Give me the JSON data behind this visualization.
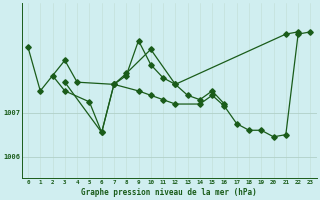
{
  "title": "Graphe pression niveau de la mer (hPa)",
  "bg_color": "#d0eef0",
  "plot_bg_color": "#d0eef0",
  "grid_color_major": "#b0d0c8",
  "grid_color_minor": "#c0ddd5",
  "line_color": "#1a5c1a",
  "x_ticks": [
    0,
    1,
    2,
    3,
    4,
    5,
    6,
    7,
    8,
    9,
    10,
    11,
    12,
    13,
    14,
    15,
    16,
    17,
    18,
    19,
    20,
    21,
    22,
    23
  ],
  "ylim": [
    1005.5,
    1009.5
  ],
  "yticks": [
    1006,
    1007
  ],
  "line1": {
    "x": [
      0,
      1,
      3,
      4,
      7,
      8,
      10,
      12,
      21,
      22
    ],
    "y": [
      1008.5,
      1007.5,
      1008.2,
      1007.7,
      1007.65,
      1007.9,
      1008.45,
      1007.65,
      1008.8,
      1008.85
    ]
  },
  "line2": {
    "x": [
      2,
      3,
      5,
      6,
      7,
      8,
      9,
      10,
      11,
      12,
      13,
      14,
      15,
      16
    ],
    "y": [
      1007.85,
      1007.5,
      1007.25,
      1006.55,
      1007.65,
      1007.85,
      1008.65,
      1008.1,
      1007.8,
      1007.65,
      1007.4,
      1007.3,
      1007.5,
      1007.2
    ]
  },
  "line3": {
    "x": [
      3,
      6,
      7,
      9,
      10,
      11,
      12,
      14,
      15,
      16,
      17,
      18,
      19,
      20,
      21,
      22,
      23
    ],
    "y": [
      1007.7,
      1006.55,
      1007.65,
      1007.5,
      1007.4,
      1007.3,
      1007.2,
      1007.2,
      1007.4,
      1007.15,
      1006.75,
      1006.6,
      1006.6,
      1006.45,
      1006.5,
      1008.8,
      1008.85
    ]
  }
}
